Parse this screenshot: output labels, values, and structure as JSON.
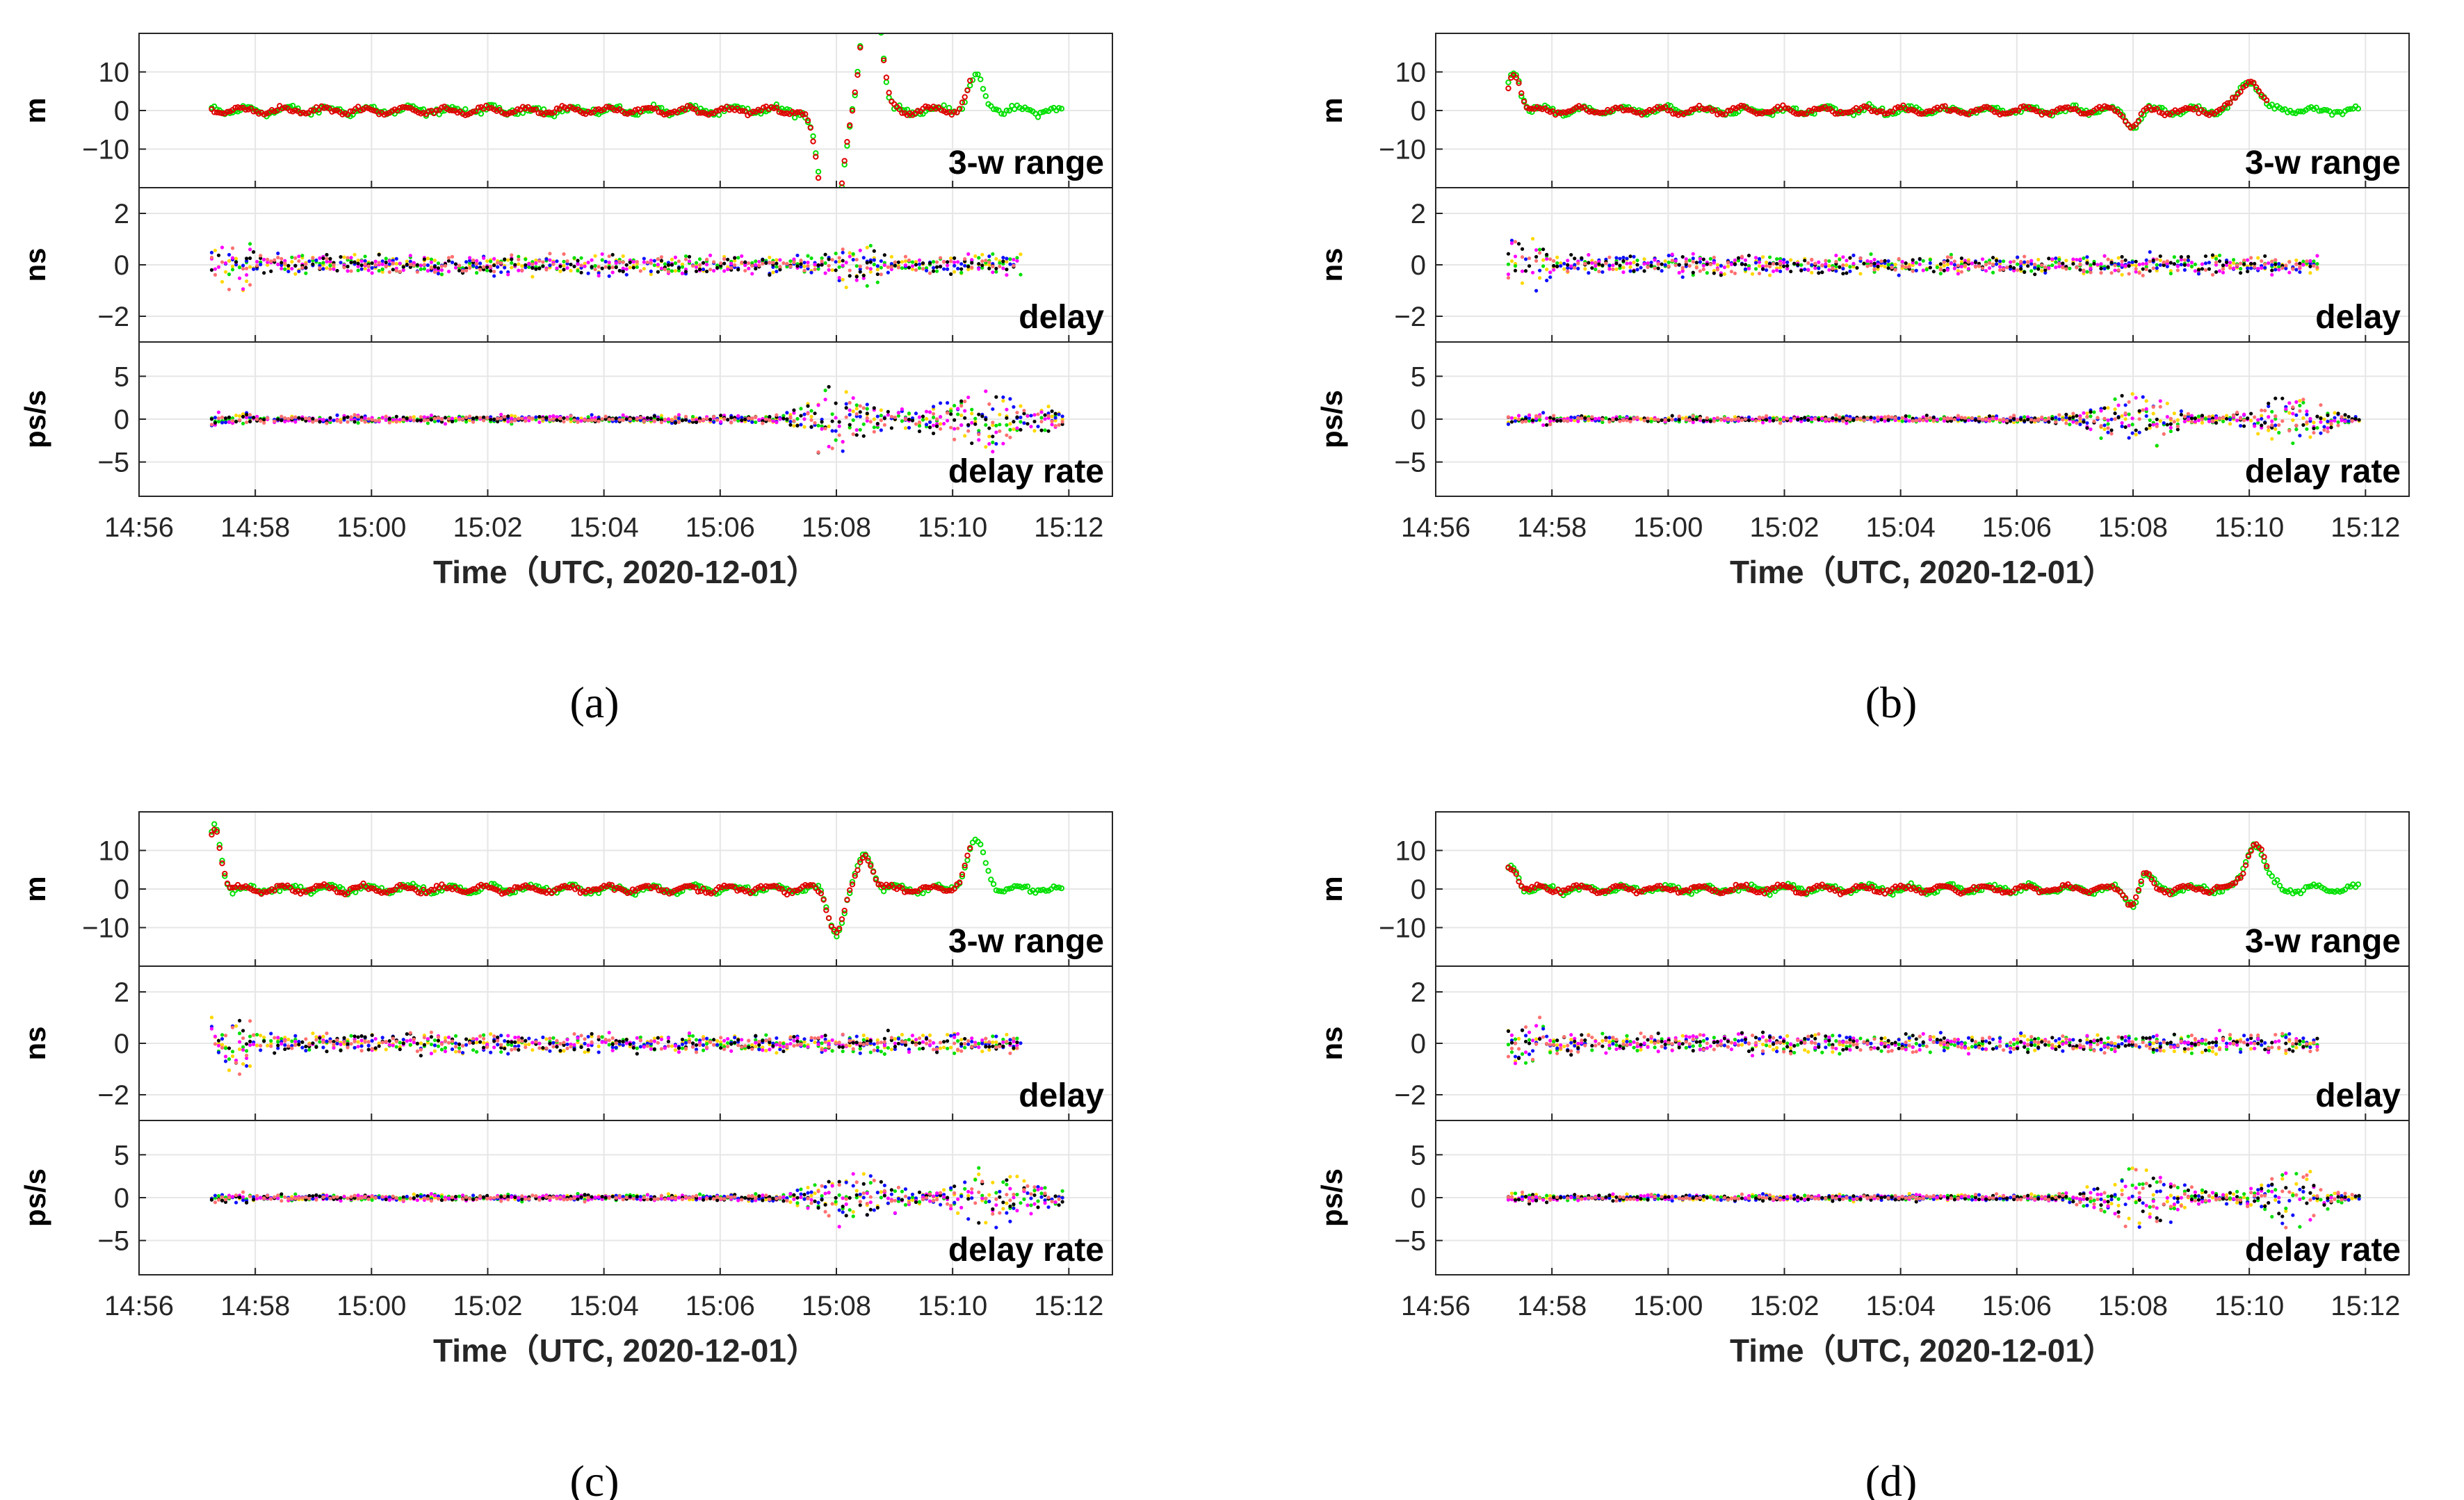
{
  "figure": {
    "x_axis_label": "Time（UTC, 2020-12-01）",
    "x_tick_labels": [
      "14:56",
      "14:58",
      "15:00",
      "15:02",
      "15:04",
      "15:06",
      "15:08",
      "15:10",
      "15:12"
    ],
    "panel_labels": [
      "3-w range",
      "delay",
      "delay rate"
    ],
    "y_axis_labels": [
      "m",
      "ns",
      "ps/s"
    ],
    "y_tick_labels": [
      [
        "10",
        "0",
        "−10"
      ],
      [
        "2",
        "0",
        "−2"
      ],
      [
        "5",
        "0",
        "−5"
      ]
    ]
  },
  "colors": {
    "green": "#00e000",
    "red": "#e00000",
    "yellow": "#ffd800",
    "blue": "#1010ff",
    "magenta": "#ff00ff",
    "black": "#000000",
    "salmon": "#ff7070"
  },
  "chart_data": [
    {
      "id": "a",
      "caption": "(a)",
      "type": "scatter",
      "x_range_minutes": [
        -1,
        15.75
      ],
      "x_origin": "14:57",
      "data_start_min": 0.25,
      "data_end_min": 14.9,
      "subplots": [
        {
          "ylabel": "m",
          "label": "3-w range",
          "ylim": [
            -20,
            20
          ],
          "series": [
            {
              "name": "green",
              "noise": 0.7
            },
            {
              "name": "red",
              "noise": 0.5
            }
          ],
          "events": [
            {
              "t": 10.9,
              "amp": -35,
              "width": 0.25
            },
            {
              "t": 11.6,
              "amp": 42,
              "width": 0.2
            },
            {
              "t": 13.4,
              "amp": 9,
              "width": 0.18
            }
          ]
        },
        {
          "ylabel": "ns",
          "label": "delay",
          "ylim": [
            -3,
            3
          ],
          "series": [
            "yellow",
            "green",
            "blue",
            "magenta",
            "black",
            "salmon"
          ],
          "noise": 0.3,
          "end_min": 14.2,
          "events": [
            {
              "t": 11.3,
              "amp": 0.9,
              "width": 0.4
            }
          ]
        },
        {
          "ylabel": "ps/s",
          "label": "delay rate",
          "ylim": [
            -9,
            9
          ],
          "series": [
            "yellow",
            "green",
            "blue",
            "magenta",
            "black",
            "salmon"
          ],
          "noise": 0.35,
          "events": [
            {
              "t": 11.0,
              "amp": 7,
              "width": 0.6
            },
            {
              "t": 13.5,
              "amp": 6,
              "width": 1.0
            }
          ]
        }
      ]
    },
    {
      "id": "b",
      "caption": "(b)",
      "type": "scatter",
      "x_range_minutes": [
        -1,
        15.75
      ],
      "x_origin": "14:57",
      "data_start_min": 0.25,
      "data_end_min": 14.9,
      "subplots": [
        {
          "ylabel": "m",
          "label": "3-w range",
          "ylim": [
            -20,
            20
          ],
          "series": [
            {
              "name": "green",
              "noise": 0.6
            },
            {
              "name": "red",
              "noise": 0.5
            }
          ],
          "events": [
            {
              "t": 0.35,
              "amp": 10,
              "width": 0.15
            },
            {
              "t": 11.0,
              "amp": -4,
              "width": 0.15
            },
            {
              "t": 13.0,
              "amp": 8,
              "width": 0.25
            }
          ]
        },
        {
          "ylabel": "ns",
          "label": "delay",
          "ylim": [
            -3,
            3
          ],
          "series": [
            "yellow",
            "green",
            "blue",
            "magenta",
            "black",
            "salmon"
          ],
          "noise": 0.3,
          "end_min": 14.2,
          "events": []
        },
        {
          "ylabel": "ps/s",
          "label": "delay rate",
          "ylim": [
            -9,
            9
          ],
          "series": [
            "yellow",
            "green",
            "blue",
            "magenta",
            "black",
            "salmon"
          ],
          "noise": 0.3,
          "events": [
            {
              "t": 11.0,
              "amp": 6,
              "width": 0.7
            },
            {
              "t": 13.7,
              "amp": 6,
              "width": 0.6
            }
          ]
        }
      ]
    },
    {
      "id": "c",
      "caption": "(c)",
      "type": "scatter",
      "x_range_minutes": [
        -1,
        15.75
      ],
      "x_origin": "14:57",
      "data_start_min": 0.25,
      "data_end_min": 14.9,
      "subplots": [
        {
          "ylabel": "m",
          "label": "3-w range",
          "ylim": [
            -20,
            20
          ],
          "series": [
            {
              "name": "green",
              "noise": 0.6
            },
            {
              "name": "red",
              "noise": 0.5
            }
          ],
          "events": [
            {
              "t": 0.3,
              "amp": 16,
              "width": 0.15
            },
            {
              "t": 11.0,
              "amp": -11,
              "width": 0.18
            },
            {
              "t": 11.5,
              "amp": 9,
              "width": 0.18
            },
            {
              "t": 13.4,
              "amp": 12,
              "width": 0.22
            }
          ]
        },
        {
          "ylabel": "ns",
          "label": "delay",
          "ylim": [
            -3,
            3
          ],
          "series": [
            "yellow",
            "green",
            "blue",
            "magenta",
            "black",
            "salmon"
          ],
          "noise": 0.3,
          "end_min": 14.2,
          "events": []
        },
        {
          "ylabel": "ps/s",
          "label": "delay rate",
          "ylim": [
            -9,
            9
          ],
          "series": [
            "yellow",
            "green",
            "blue",
            "magenta",
            "black",
            "salmon"
          ],
          "noise": 0.3,
          "events": [
            {
              "t": 11.3,
              "amp": 6,
              "width": 0.7
            },
            {
              "t": 13.8,
              "amp": 6,
              "width": 0.8
            }
          ]
        }
      ]
    },
    {
      "id": "d",
      "caption": "(d)",
      "type": "scatter",
      "x_range_minutes": [
        -1,
        15.75
      ],
      "x_origin": "14:57",
      "data_start_min": 0.25,
      "data_end_min": 14.9,
      "subplots": [
        {
          "ylabel": "m",
          "label": "3-w range",
          "ylim": [
            -20,
            20
          ],
          "series": [
            {
              "name": "green",
              "noise": 0.6
            },
            {
              "name": "red",
              "noise": 0.5
            }
          ],
          "events": [
            {
              "t": 0.3,
              "amp": 6,
              "width": 0.15
            },
            {
              "t": 11.0,
              "amp": -4,
              "width": 0.15
            },
            {
              "t": 11.2,
              "amp": 4,
              "width": 0.15
            },
            {
              "t": 13.1,
              "amp": 12,
              "width": 0.22
            }
          ]
        },
        {
          "ylabel": "ns",
          "label": "delay",
          "ylim": [
            -3,
            3
          ],
          "series": [
            "yellow",
            "green",
            "blue",
            "magenta",
            "black",
            "salmon"
          ],
          "noise": 0.3,
          "end_min": 14.2,
          "events": []
        },
        {
          "ylabel": "ps/s",
          "label": "delay rate",
          "ylim": [
            -9,
            9
          ],
          "series": [
            "yellow",
            "green",
            "blue",
            "magenta",
            "black",
            "salmon"
          ],
          "noise": 0.3,
          "events": [
            {
              "t": 11.2,
              "amp": 6,
              "width": 0.8
            },
            {
              "t": 13.7,
              "amp": 6,
              "width": 0.6
            }
          ]
        }
      ]
    }
  ]
}
